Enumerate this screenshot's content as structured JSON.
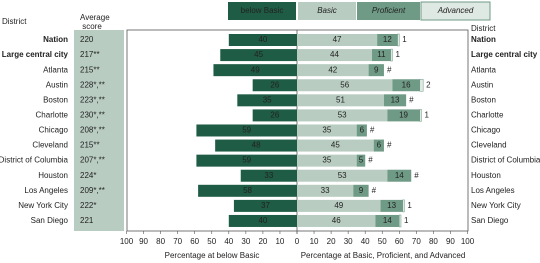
{
  "chart_data": {
    "type": "diverging-bar",
    "header_left": "District",
    "header_score": "Average score",
    "header_right": "District",
    "categories": [
      "Nation",
      "Large central city",
      "Atlanta",
      "Austin",
      "Boston",
      "Charlotte",
      "Chicago",
      "Cleveland",
      "District of Columbia",
      "Houston",
      "Los Angeles",
      "New York City",
      "San Diego"
    ],
    "scores": [
      "220",
      "217**",
      "215**",
      "228*,**",
      "223*,**",
      "230*,**",
      "208*,**",
      "215**",
      "207*,**",
      "224*",
      "209*,**",
      "222*",
      "221"
    ],
    "series": [
      {
        "name": "below Basic",
        "color": "#1f5c45",
        "values": [
          40,
          45,
          49,
          26,
          35,
          26,
          59,
          48,
          59,
          33,
          58,
          37,
          40
        ]
      },
      {
        "name": "Basic",
        "color": "#b8ccc1",
        "values": [
          47,
          44,
          42,
          56,
          51,
          53,
          35,
          45,
          35,
          53,
          33,
          49,
          46
        ]
      },
      {
        "name": "Proficient",
        "color": "#6f9a86",
        "values": [
          12,
          11,
          9,
          16,
          13,
          19,
          6,
          6,
          5,
          14,
          9,
          13,
          14
        ]
      },
      {
        "name": "Advanced",
        "color": "#dfe9e3",
        "values": [
          1,
          1,
          0,
          2,
          0,
          1,
          0,
          0,
          0,
          0,
          0,
          1,
          1
        ],
        "value_labels": [
          "1",
          "1",
          "#",
          "2",
          "#",
          "1",
          "#",
          "#",
          "#",
          "#",
          "#",
          "1",
          "1"
        ]
      }
    ],
    "xlim": [
      0,
      100
    ],
    "xticks_left": [
      100,
      90,
      80,
      70,
      60,
      50,
      40,
      30,
      20,
      10,
      0
    ],
    "xticks_right": [
      0,
      10,
      20,
      30,
      40,
      50,
      60,
      70,
      80,
      90,
      100
    ],
    "xlabel_left": "Percentage at below Basic",
    "xlabel_right": "Percentage at Basic, Proficient, and Advanced"
  }
}
